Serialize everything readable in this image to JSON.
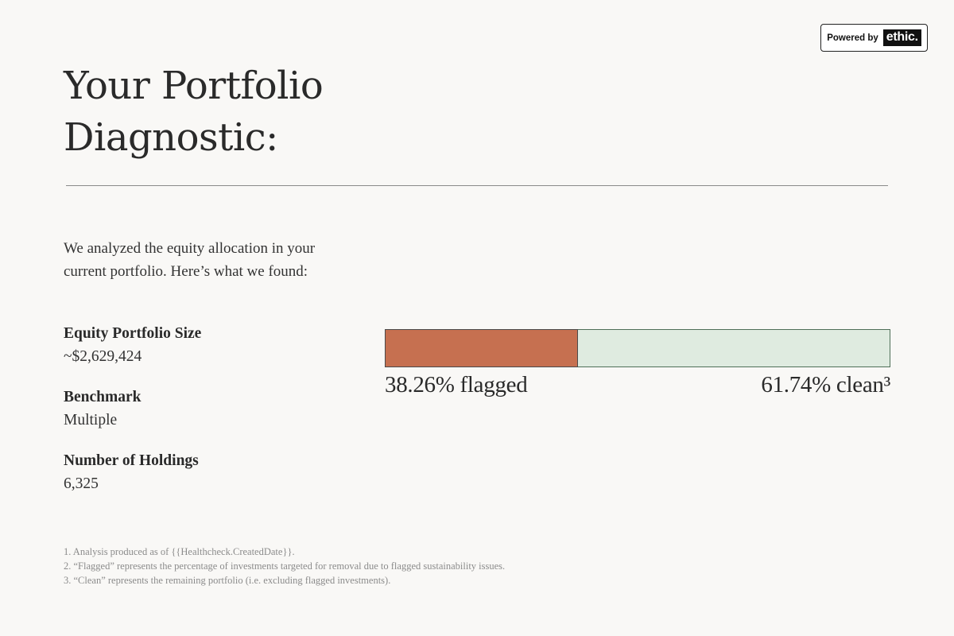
{
  "badge": {
    "powered_by": "Powered by",
    "logo": "ethic."
  },
  "title": "Your Portfolio Diagnostic:",
  "intro": "We analyzed the equity allocation in your current portfolio. Here’s what we found:",
  "stats": [
    {
      "label": "Equity Portfolio Size",
      "value": "~$2,629,424"
    },
    {
      "label": "Benchmark",
      "value": "Multiple"
    },
    {
      "label": "Number of Holdings",
      "value": "6,325"
    }
  ],
  "chart_data": {
    "type": "bar",
    "orientation": "horizontal-stacked",
    "categories": [
      "flagged",
      "clean"
    ],
    "values": [
      38.26,
      61.74
    ],
    "labels": [
      "38.26% flagged",
      "61.74% clean³"
    ],
    "colors": {
      "flagged": "#c67050",
      "clean": "#dfebe0"
    }
  },
  "footnotes": [
    "1. Analysis produced as of {{Healthcheck.CreatedDate}}.",
    "2. “Flagged” represents the percentage of investments targeted for removal due to flagged sustainability issues.",
    "3. “Clean” represents the remaining portfolio (i.e. excluding flagged investments)."
  ]
}
